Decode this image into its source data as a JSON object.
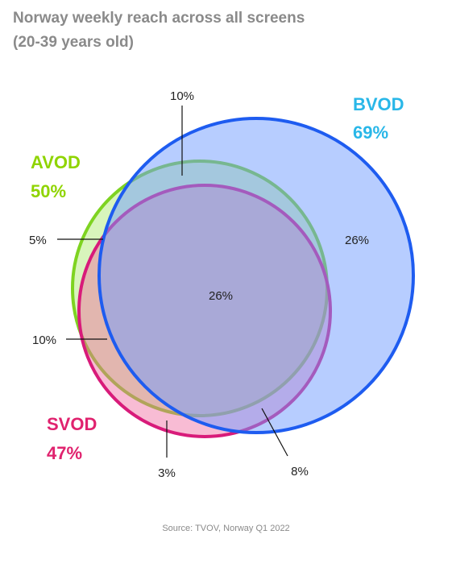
{
  "title": {
    "line1": "Norway weekly reach across all screens",
    "line2": "(20-39 years old)"
  },
  "sets": {
    "avod": {
      "name": "AVOD",
      "value": "50%",
      "color": "#8fd400"
    },
    "bvod": {
      "name": "BVOD",
      "value": "69%",
      "color": "#29b7e8"
    },
    "svod": {
      "name": "SVOD",
      "value": "47%",
      "color": "#e0226e"
    }
  },
  "regions": {
    "top": "10%",
    "left_upper": "5%",
    "bvod_only": "26%",
    "center": "26%",
    "left_lower": "10%",
    "bottom": "3%",
    "bottom_right": "8%"
  },
  "source": "Source: TVOV, Norway Q1 2022"
}
